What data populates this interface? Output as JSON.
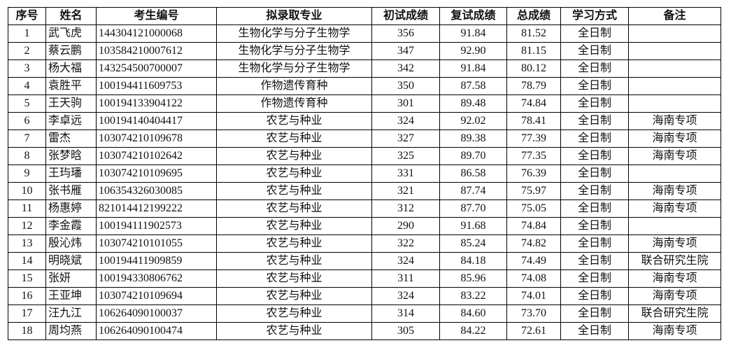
{
  "headers": [
    "序号",
    "姓名",
    "考生编号",
    "拟录取专业",
    "初试成绩",
    "复试成绩",
    "总成绩",
    "学习方式",
    "备注"
  ],
  "rows": [
    [
      "1",
      "武飞虎",
      "144304121000068",
      "生物化学与分子生物学",
      "356",
      "91.84",
      "81.52",
      "全日制",
      ""
    ],
    [
      "2",
      "蔡云鹏",
      "103584210007612",
      "生物化学与分子生物学",
      "347",
      "92.90",
      "81.15",
      "全日制",
      ""
    ],
    [
      "3",
      "杨大福",
      "143254500700007",
      "生物化学与分子生物学",
      "342",
      "91.84",
      "80.12",
      "全日制",
      ""
    ],
    [
      "4",
      "袁胜平",
      "100194411609753",
      "作物遗传育种",
      "350",
      "87.58",
      "78.79",
      "全日制",
      ""
    ],
    [
      "5",
      "王天驹",
      "100194133904122",
      "作物遗传育种",
      "301",
      "89.48",
      "74.84",
      "全日制",
      ""
    ],
    [
      "6",
      "李卓远",
      "100194140404417",
      "农艺与种业",
      "324",
      "92.02",
      "78.41",
      "全日制",
      "海南专项"
    ],
    [
      "7",
      "雷杰",
      "103074210109678",
      "农艺与种业",
      "327",
      "89.38",
      "77.39",
      "全日制",
      "海南专项"
    ],
    [
      "8",
      "张梦晗",
      "103074210102642",
      "农艺与种业",
      "325",
      "89.70",
      "77.35",
      "全日制",
      "海南专项"
    ],
    [
      "9",
      "王玙璠",
      "103074210109695",
      "农艺与种业",
      "331",
      "86.58",
      "76.39",
      "全日制",
      ""
    ],
    [
      "10",
      "张书雁",
      "106354326030085",
      "农艺与种业",
      "321",
      "87.74",
      "75.97",
      "全日制",
      "海南专项"
    ],
    [
      "11",
      "杨惠婷",
      "821014412199222",
      "农艺与种业",
      "312",
      "87.70",
      "75.05",
      "全日制",
      "海南专项"
    ],
    [
      "12",
      "李金霞",
      "100194111902573",
      "农艺与种业",
      "290",
      "91.68",
      "74.84",
      "全日制",
      ""
    ],
    [
      "13",
      "殷沁炜",
      "103074210101055",
      "农艺与种业",
      "322",
      "85.24",
      "74.82",
      "全日制",
      "海南专项"
    ],
    [
      "14",
      "明晓斌",
      "100194411909859",
      "农艺与种业",
      "324",
      "84.18",
      "74.49",
      "全日制",
      "联合研究生院"
    ],
    [
      "15",
      "张妍",
      "100194330806762",
      "农艺与种业",
      "311",
      "85.96",
      "74.08",
      "全日制",
      "海南专项"
    ],
    [
      "16",
      "王亚坤",
      "103074210109694",
      "农艺与种业",
      "324",
      "83.22",
      "74.01",
      "全日制",
      "海南专项"
    ],
    [
      "17",
      "汪九江",
      "106264090100037",
      "农艺与种业",
      "314",
      "84.60",
      "73.70",
      "全日制",
      "联合研究生院"
    ],
    [
      "18",
      "周均燕",
      "106264090100474",
      "农艺与种业",
      "305",
      "84.22",
      "72.61",
      "全日制",
      "海南专项"
    ]
  ]
}
